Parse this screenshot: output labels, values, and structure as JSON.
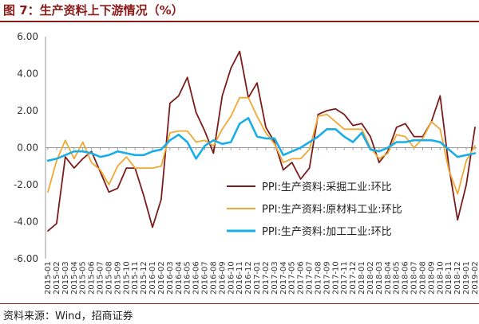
{
  "title": "图 7：生产资料上下游情况（%）",
  "source": "资料来源：Wind，招商证券",
  "chart_data": {
    "type": "line",
    "title": "图 7：生产资料上下游情况（%）",
    "xlabel": "",
    "ylabel": "",
    "ylim": [
      -6,
      6
    ],
    "yticks": [
      "6.00",
      "4.00",
      "2.00",
      "0.00",
      "-2.00",
      "-4.00",
      "-6.00"
    ],
    "legend_position": "bottom-right",
    "grid": false,
    "x": [
      "2015-01",
      "2015-02",
      "2015-03",
      "2015-04",
      "2015-05",
      "2015-06",
      "2015-07",
      "2015-08",
      "2015-09",
      "2015-10",
      "2015-11",
      "2015-12",
      "2016-01",
      "2016-02",
      "2016-03",
      "2016-04",
      "2016-05",
      "2016-06",
      "2016-07",
      "2016-08",
      "2016-09",
      "2016-10",
      "2016-11",
      "2016-12",
      "2017-01",
      "2017-02",
      "2017-03",
      "2017-04",
      "2017-05",
      "2017-06",
      "2017-07",
      "2017-08",
      "2017-09",
      "2017-10",
      "2017-11",
      "2017-12",
      "2018-01",
      "2018-02",
      "2018-03",
      "2018-04",
      "2018-05",
      "2018-06",
      "2018-07",
      "2018-08",
      "2018-09",
      "2018-10",
      "2018-11",
      "2018-12",
      "2019-01",
      "2019-02"
    ],
    "series": [
      {
        "name": "PPI:生产资料:采掘工业:环比",
        "color": "#7b1c1c",
        "values": [
          -4.5,
          -4.1,
          -0.5,
          -1.1,
          -0.6,
          -0.2,
          -1.3,
          -2.4,
          -2.2,
          -1.1,
          -1.1,
          -2.6,
          -4.3,
          -2.8,
          2.4,
          2.8,
          3.8,
          1.9,
          0.9,
          -0.3,
          2.8,
          4.3,
          5.2,
          2.7,
          3.5,
          1.1,
          0.3,
          -1.2,
          -0.8,
          -1.7,
          -1.1,
          1.8,
          2.0,
          2.1,
          1.8,
          1.2,
          1.3,
          0.6,
          -0.8,
          -0.2,
          1.1,
          1.3,
          0.6,
          0.6,
          1.4,
          2.8,
          -1.0,
          -3.9,
          -2.0,
          1.1
        ]
      },
      {
        "name": "PPI:生产资料:原材料工业:环比",
        "color": "#f0a830",
        "values": [
          -2.4,
          -0.7,
          0.4,
          -0.6,
          0.3,
          -0.8,
          -1.2,
          -2.0,
          -1.0,
          -0.5,
          -1.1,
          -1.1,
          -1.1,
          -1.0,
          0.8,
          0.9,
          0.9,
          0.3,
          0.4,
          0.1,
          1.0,
          1.7,
          2.7,
          2.7,
          1.7,
          0.8,
          0.2,
          -0.8,
          -0.6,
          -0.6,
          -0.1,
          1.7,
          1.8,
          1.4,
          1.0,
          1.0,
          1.0,
          0.0,
          -0.6,
          -0.3,
          0.7,
          0.6,
          0.0,
          0.5,
          1.4,
          1.0,
          -1.2,
          -2.5,
          -0.7,
          0.1
        ]
      },
      {
        "name": "PPI:生产资料:加工工业:环比",
        "color": "#1aaee8",
        "values": [
          -0.7,
          -0.6,
          -0.4,
          -0.2,
          -0.2,
          -0.3,
          -0.5,
          -0.4,
          -0.2,
          -0.3,
          -0.4,
          -0.4,
          -0.2,
          -0.1,
          0.4,
          0.7,
          0.3,
          -0.6,
          0.1,
          0.4,
          0.2,
          0.3,
          1.3,
          1.6,
          0.6,
          0.5,
          0.5,
          -0.4,
          -0.2,
          0.0,
          0.3,
          0.6,
          1.0,
          1.0,
          0.6,
          0.3,
          0.8,
          -0.1,
          -0.2,
          0.0,
          0.3,
          0.3,
          0.4,
          0.4,
          0.4,
          0.3,
          -0.1,
          -0.5,
          -0.4,
          -0.3
        ]
      }
    ]
  }
}
